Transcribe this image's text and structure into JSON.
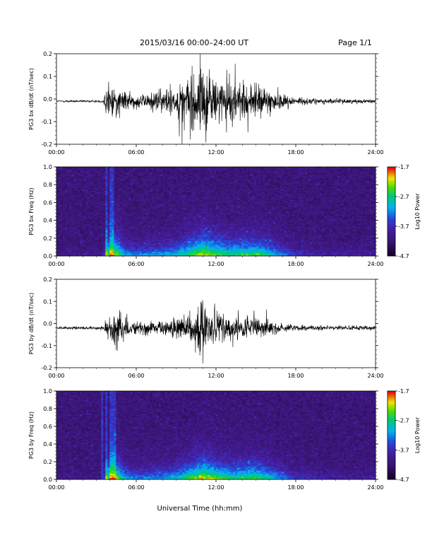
{
  "header": {
    "title": "2015/03/16  00:00–24:00 UT",
    "page": "Page 1/1"
  },
  "footer": {
    "xlabel": "Universal Time (hh:mm)"
  },
  "chart_data": [
    {
      "type": "line",
      "ylabel": "PG3 bx dB/dt (nT/sec)",
      "xlim": [
        0,
        24
      ],
      "ylim": [
        -0.2,
        0.2
      ],
      "yticks": [
        "0.2",
        "0.1",
        "0.0",
        "-0.1",
        "-0.2"
      ],
      "xticks": [
        "00:00",
        "06:00",
        "12:00",
        "18:00",
        "24:00"
      ],
      "envelope": {
        "x": [
          0,
          3.5,
          3.7,
          4.0,
          4.5,
          5.0,
          5.5,
          6.0,
          7.0,
          8.0,
          9.0,
          10.0,
          10.5,
          11.0,
          11.5,
          12.0,
          13.0,
          14.0,
          15.0,
          16.0,
          17.0,
          18.0,
          20.0,
          24.0
        ],
        "amp": [
          0.003,
          0.004,
          0.04,
          0.06,
          0.05,
          0.03,
          0.025,
          0.02,
          0.03,
          0.035,
          0.045,
          0.09,
          0.11,
          0.12,
          0.08,
          0.07,
          0.065,
          0.06,
          0.05,
          0.045,
          0.025,
          0.012,
          0.008,
          0.006
        ]
      },
      "baseline": -0.01
    },
    {
      "type": "heatmap",
      "ylabel": "PG3 bx Freq (Hz)",
      "xlim": [
        0,
        24
      ],
      "ylim": [
        0.0,
        1.0
      ],
      "yticks": [
        "1.0",
        "0.8",
        "0.6",
        "0.4",
        "0.2",
        "0.0"
      ],
      "xticks": [
        "00:00",
        "06:00",
        "12:00",
        "18:00",
        "24:00"
      ],
      "colorbar": {
        "label": "Log10 Power",
        "ticks": [
          "-1.7",
          "-2.7",
          "-3.7",
          "-4.7"
        ],
        "range": [
          -4.7,
          -1.7
        ]
      }
    },
    {
      "type": "line",
      "ylabel": "PG3 by dB/dt (nT/sec)",
      "xlim": [
        0,
        24
      ],
      "ylim": [
        -0.2,
        0.2
      ],
      "yticks": [
        "0.2",
        "0.1",
        "0.0",
        "-0.1",
        "-0.2"
      ],
      "xticks": [
        "00:00",
        "06:00",
        "12:00",
        "18:00",
        "24:00"
      ],
      "envelope": {
        "x": [
          0,
          3.5,
          3.8,
          4.2,
          4.6,
          5.0,
          5.5,
          6.0,
          7.0,
          8.0,
          9.0,
          10.0,
          11.0,
          11.5,
          12.0,
          13.0,
          14.0,
          15.0,
          16.0,
          17.0,
          18.0,
          20.0,
          24.0
        ],
        "amp": [
          0.004,
          0.006,
          0.03,
          0.06,
          0.08,
          0.04,
          0.02,
          0.02,
          0.02,
          0.025,
          0.03,
          0.05,
          0.08,
          0.06,
          0.05,
          0.04,
          0.035,
          0.03,
          0.025,
          0.015,
          0.01,
          0.008,
          0.006
        ]
      },
      "baseline": -0.02
    },
    {
      "type": "heatmap",
      "ylabel": "PG3 by Freq (Hz)",
      "xlim": [
        0,
        24
      ],
      "ylim": [
        0.0,
        1.0
      ],
      "yticks": [
        "1.0",
        "0.8",
        "0.6",
        "0.4",
        "0.2",
        "0.0"
      ],
      "xticks": [
        "00:00",
        "06:00",
        "12:00",
        "18:00",
        "24:00"
      ],
      "colorbar": {
        "label": "Log10 Power",
        "ticks": [
          "-1.7",
          "-2.7",
          "-3.7",
          "-4.7"
        ],
        "range": [
          -4.7,
          -1.7
        ]
      }
    }
  ]
}
